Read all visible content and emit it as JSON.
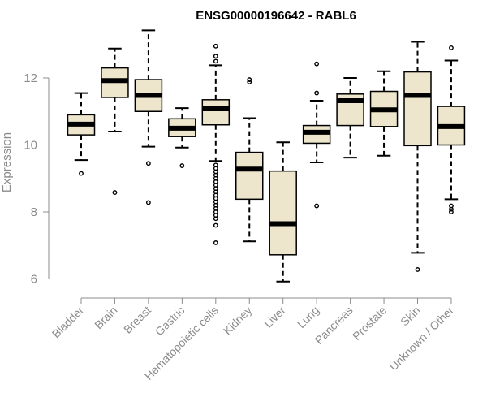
{
  "chart_data": {
    "type": "boxplot",
    "title": "ENSG00000196642 - RABL6",
    "ylabel": "Expression",
    "xlabel": "",
    "ylim": [
      5.6,
      13.6
    ],
    "yticks": [
      6,
      8,
      10,
      12
    ],
    "box_color": "#ede6cc",
    "median_color": "#000000",
    "categories": [
      "Bladder",
      "Brain",
      "Breast",
      "Gastric",
      "Hematopoietic cells",
      "Kidney",
      "Liver",
      "Lung",
      "Pancreas",
      "Prostate",
      "Skin",
      "Unknown / Other"
    ],
    "boxes": [
      {
        "whisker_low": 9.55,
        "q1": 10.3,
        "median": 10.62,
        "q3": 10.9,
        "whisker_high": 11.55,
        "outliers": [
          9.15
        ]
      },
      {
        "whisker_low": 10.4,
        "q1": 11.42,
        "median": 11.92,
        "q3": 12.3,
        "whisker_high": 12.88,
        "outliers": [
          8.58
        ]
      },
      {
        "whisker_low": 9.95,
        "q1": 11.0,
        "median": 11.48,
        "q3": 11.95,
        "whisker_high": 13.42,
        "outliers": [
          9.45,
          8.28
        ]
      },
      {
        "whisker_low": 9.92,
        "q1": 10.25,
        "median": 10.5,
        "q3": 10.78,
        "whisker_high": 11.1,
        "outliers": [
          9.38
        ]
      },
      {
        "whisker_low": 9.52,
        "q1": 10.6,
        "median": 11.08,
        "q3": 11.35,
        "whisker_high": 12.38,
        "outliers": [
          12.95,
          12.65,
          12.5,
          9.4,
          9.3,
          9.2,
          9.1,
          9.0,
          8.9,
          8.8,
          8.7,
          8.6,
          8.5,
          8.4,
          8.3,
          8.2,
          8.1,
          8.0,
          7.9,
          7.8,
          7.6,
          7.08
        ]
      },
      {
        "whisker_low": 7.12,
        "q1": 8.38,
        "median": 9.28,
        "q3": 9.78,
        "whisker_high": 10.8,
        "outliers": [
          11.88,
          11.95
        ]
      },
      {
        "whisker_low": 5.92,
        "q1": 6.72,
        "median": 7.65,
        "q3": 9.22,
        "whisker_high": 10.08,
        "outliers": []
      },
      {
        "whisker_low": 9.48,
        "q1": 10.05,
        "median": 10.38,
        "q3": 10.58,
        "whisker_high": 11.32,
        "outliers": [
          12.42,
          11.55,
          8.18
        ]
      },
      {
        "whisker_low": 9.62,
        "q1": 10.58,
        "median": 11.32,
        "q3": 11.52,
        "whisker_high": 12.0,
        "outliers": []
      },
      {
        "whisker_low": 9.68,
        "q1": 10.55,
        "median": 11.05,
        "q3": 11.6,
        "whisker_high": 12.2,
        "outliers": []
      },
      {
        "whisker_low": 6.78,
        "q1": 9.98,
        "median": 11.48,
        "q3": 12.18,
        "whisker_high": 13.08,
        "outliers": [
          6.28
        ]
      },
      {
        "whisker_low": 8.38,
        "q1": 10.0,
        "median": 10.55,
        "q3": 11.15,
        "whisker_high": 12.52,
        "outliers": [
          12.9,
          8.18,
          8.08,
          8.0
        ]
      }
    ]
  }
}
